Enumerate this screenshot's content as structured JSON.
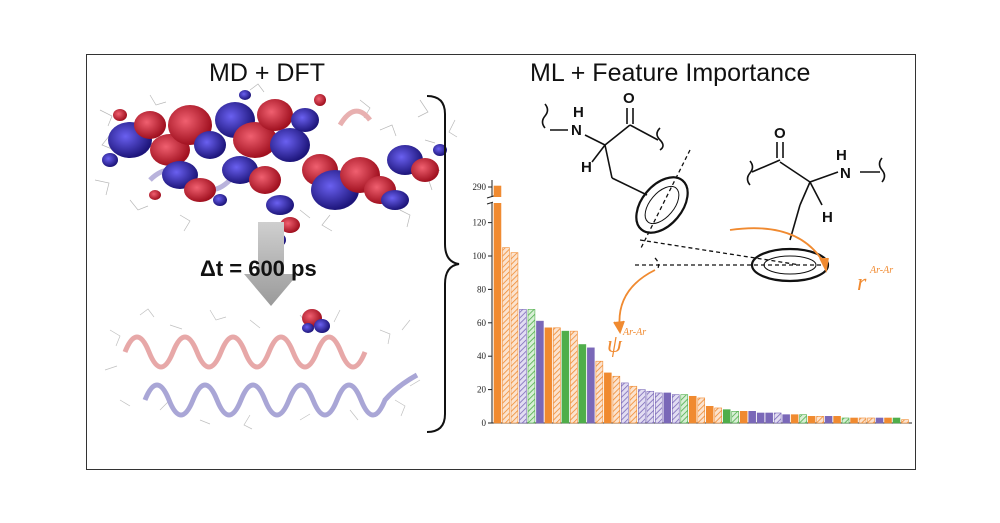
{
  "panels": {
    "left_title": "MD + DFT",
    "right_title": "ML + Feature Importance",
    "time_step": "Δt = 600 ps"
  },
  "structure": {
    "atoms_left": [
      "N",
      "H",
      "O",
      "H"
    ],
    "atoms_right": [
      "O",
      "H",
      "N",
      "H"
    ],
    "angle_symbol": "ψ",
    "angle_sup": "Ar-Ar",
    "distance_symbol": "r",
    "distance_sup": "Ar-Ar"
  },
  "colors": {
    "orange": "#f08a30",
    "green": "#4fae4a",
    "purple": "#7a68b8",
    "red_orbital": "#d0263a",
    "blue_orbital": "#3a2fbf"
  },
  "chart_data": {
    "type": "bar",
    "title": "",
    "xlabel": "",
    "ylabel": "",
    "ylim": [
      0,
      290
    ],
    "axis_break": [
      125,
      285
    ],
    "yticks": [
      0,
      20,
      40,
      60,
      80,
      100,
      120,
      290
    ],
    "values": [
      290,
      105,
      102,
      68,
      68,
      61,
      57,
      57,
      55,
      55,
      47,
      45,
      37,
      30,
      28,
      24,
      22,
      20,
      19,
      18,
      18,
      17,
      17,
      16,
      15,
      10,
      9,
      8,
      7,
      7,
      7,
      6,
      6,
      6,
      5,
      5,
      5,
      4,
      4,
      4,
      4,
      3,
      3,
      3,
      3,
      3,
      3,
      3,
      2
    ],
    "colors": [
      "orange",
      "orange",
      "orange",
      "purple",
      "green",
      "purple",
      "orange",
      "orange",
      "green",
      "orange",
      "green",
      "purple",
      "orange",
      "orange",
      "orange",
      "purple",
      "orange",
      "purple",
      "purple",
      "purple",
      "purple",
      "purple",
      "green",
      "orange",
      "orange",
      "orange",
      "orange",
      "green",
      "green",
      "orange",
      "purple",
      "purple",
      "purple",
      "purple",
      "purple",
      "orange",
      "green",
      "orange",
      "orange",
      "purple",
      "orange",
      "green",
      "orange",
      "orange",
      "orange",
      "purple",
      "orange",
      "green",
      "orange"
    ],
    "hatched": [
      false,
      true,
      true,
      true,
      true,
      false,
      false,
      true,
      false,
      true,
      false,
      false,
      true,
      false,
      true,
      true,
      true,
      true,
      true,
      true,
      false,
      true,
      true,
      false,
      true,
      false,
      true,
      false,
      true,
      false,
      false,
      false,
      false,
      true,
      false,
      false,
      true,
      false,
      true,
      false,
      false,
      true,
      false,
      true,
      true,
      false,
      false,
      false,
      true
    ]
  }
}
